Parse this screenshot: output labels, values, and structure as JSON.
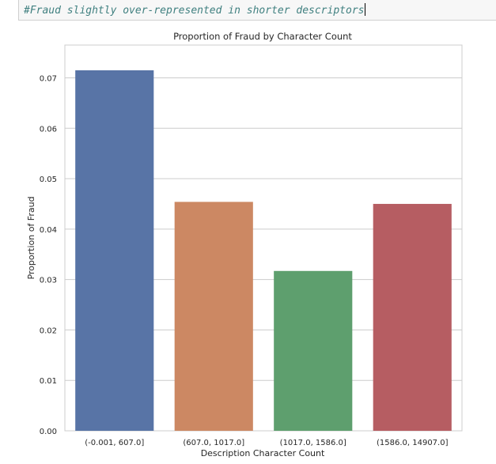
{
  "cell": {
    "comment": "#Fraud slightly over-represented in shorter descriptors"
  },
  "chart_data": {
    "type": "bar",
    "title": "Proportion of Fraud by Character Count",
    "xlabel": "Description Character Count",
    "ylabel": "Proportion of Fraud",
    "categories": [
      "(-0.001, 607.0]",
      "(607.0, 1017.0]",
      "(1017.0, 1586.0]",
      "(1586.0, 14907.0]"
    ],
    "values": [
      0.0715,
      0.0454,
      0.0317,
      0.045
    ],
    "colors": [
      "#5874a6",
      "#cc8863",
      "#5e9f6e",
      "#b65d62"
    ],
    "ylim": [
      0,
      0.0765
    ],
    "yticks": [
      0,
      0.01,
      0.02,
      0.03,
      0.04,
      0.05,
      0.06,
      0.07
    ],
    "ytick_labels": [
      "0.00",
      "0.01",
      "0.02",
      "0.03",
      "0.04",
      "0.05",
      "0.06",
      "0.07"
    ],
    "grid": true,
    "grid_axis": "y"
  }
}
